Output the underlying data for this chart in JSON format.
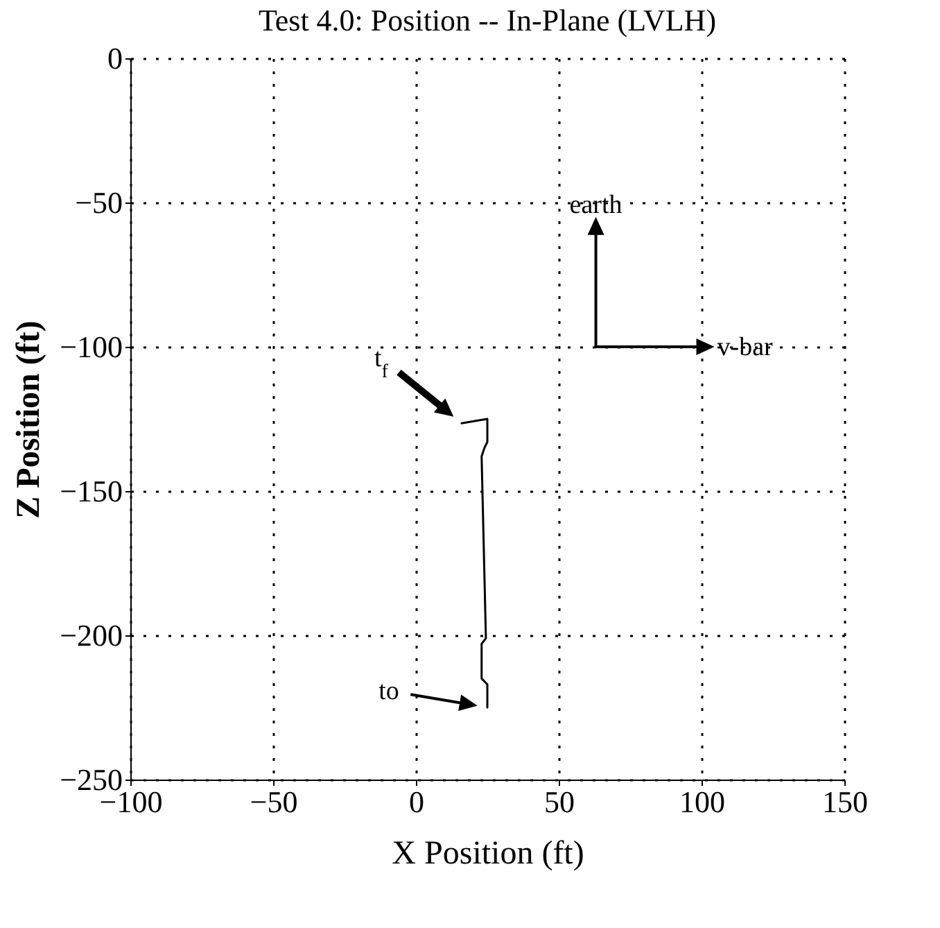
{
  "chart_data": {
    "type": "line",
    "title": "Test 4.0:   Position -- In-Plane (LVLH)",
    "xlabel": "X Position (ft)",
    "ylabel": "Z Position (ft)",
    "xlim": [
      -100,
      150
    ],
    "xticks": [
      -100,
      -50,
      0,
      50,
      100,
      150
    ],
    "ylim": [
      -250,
      0
    ],
    "yticks": [
      -250,
      -200,
      -150,
      -100,
      -50,
      0
    ],
    "grid": true,
    "line_style": "solid",
    "marker": "none",
    "series": [
      {
        "color": "#000000",
        "x": [
          25,
          25,
          23,
          23,
          24.5,
          23,
          24,
          25,
          25,
          16
        ],
        "values": [
          -225,
          -217,
          -215,
          -203,
          -201,
          -138,
          -135,
          -133,
          -125,
          -126.5
        ]
      }
    ],
    "annotations": [
      "t$_{f}$",
      "to",
      "earth",
      "v-bar"
    ]
  }
}
